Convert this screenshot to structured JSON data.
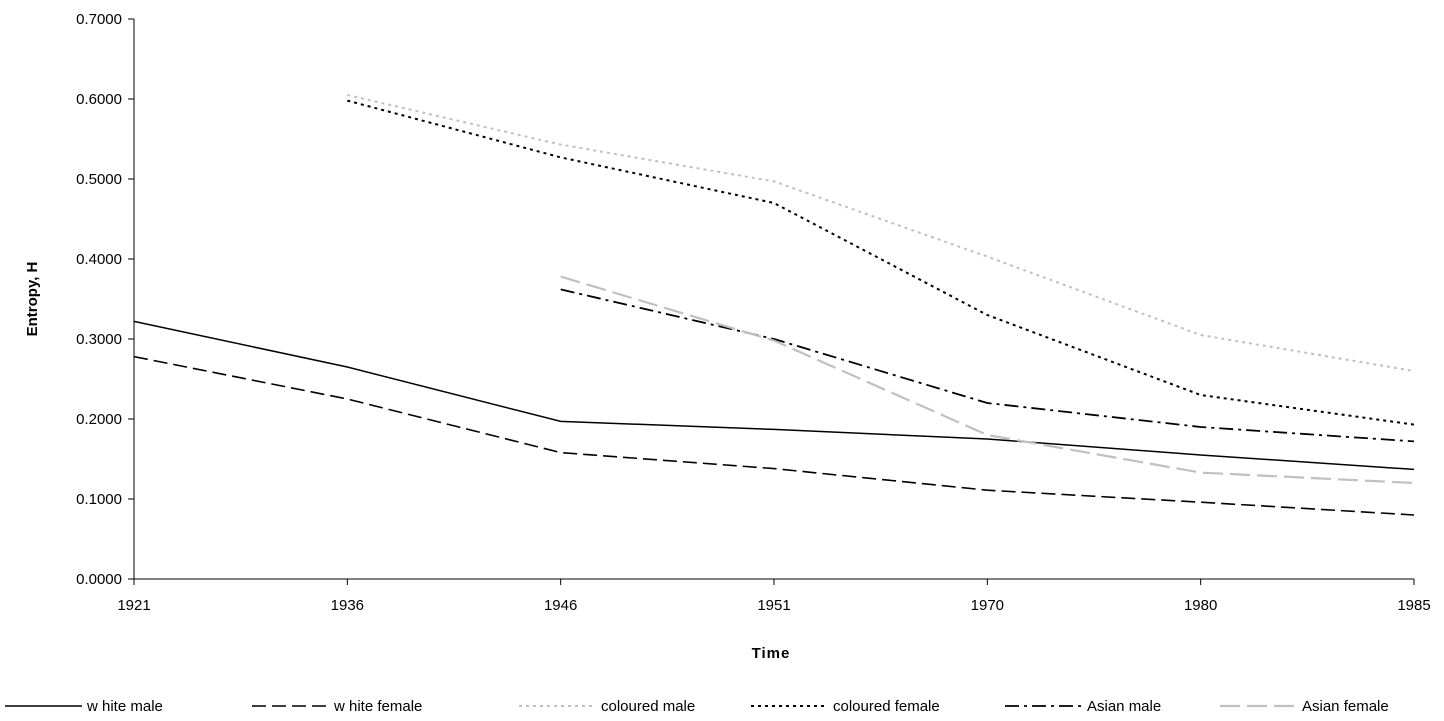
{
  "chart_data": {
    "type": "line",
    "title": "",
    "xlabel": "Time",
    "ylabel": "Entropy, H",
    "categories": [
      "1921",
      "1936",
      "1946",
      "1951",
      "1970",
      "1980",
      "1985"
    ],
    "ylim": [
      0,
      0.7
    ],
    "yticks": [
      "0.0000",
      "0.1000",
      "0.2000",
      "0.3000",
      "0.4000",
      "0.5000",
      "0.6000",
      "0.7000"
    ],
    "grid": false,
    "legend_position": "bottom",
    "series": [
      {
        "name": "w hite male",
        "values": [
          0.322,
          0.265,
          0.197,
          0.187,
          0.175,
          0.155,
          0.137
        ],
        "color": "#000000",
        "dash": "solid"
      },
      {
        "name": "w hite female",
        "values": [
          0.278,
          0.225,
          0.158,
          0.138,
          0.111,
          0.096,
          0.08
        ],
        "color": "#000000",
        "dash": "dashed"
      },
      {
        "name": "coloured male",
        "values": [
          null,
          0.605,
          0.543,
          0.497,
          0.403,
          0.305,
          0.26
        ],
        "color": "#c0c0c0",
        "dash": "dotted"
      },
      {
        "name": "coloured female",
        "values": [
          null,
          0.598,
          0.527,
          0.47,
          0.33,
          0.23,
          0.193
        ],
        "color": "#000000",
        "dash": "dotted"
      },
      {
        "name": "Asian male",
        "values": [
          null,
          null,
          0.362,
          0.3,
          0.22,
          0.19,
          0.172
        ],
        "color": "#000000",
        "dash": "dashdot"
      },
      {
        "name": "Asian female",
        "values": [
          null,
          null,
          0.378,
          0.298,
          0.18,
          0.133,
          0.12
        ],
        "color": "#c0c0c0",
        "dash": "longdash"
      }
    ]
  }
}
